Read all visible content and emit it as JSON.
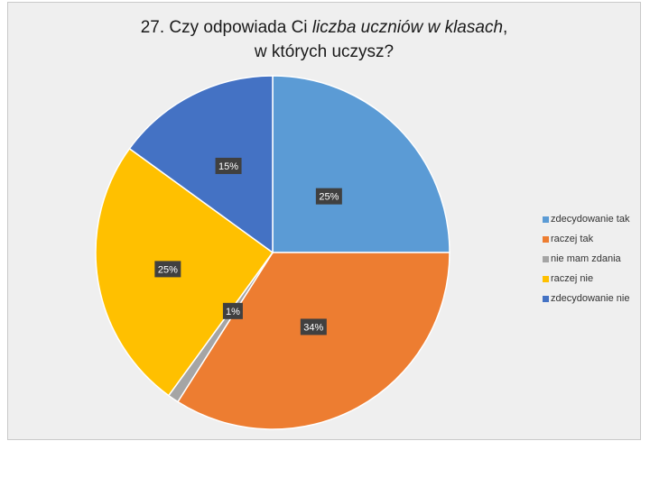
{
  "chart_data": {
    "type": "pie",
    "title": {
      "prefix": "27. Czy odpowiada Ci ",
      "italic": "liczba uczniów w klasach",
      "line1_suffix": ",",
      "line2": "w których uczysz?"
    },
    "categories": [
      "zdecydowanie tak",
      "raczej tak",
      "nie mam zdania",
      "raczej nie",
      "zdecydowanie nie"
    ],
    "values": [
      25,
      34,
      1,
      25,
      15
    ],
    "data_labels": [
      "25%",
      "34%",
      "1%",
      "25%",
      "15%"
    ],
    "colors": [
      "#5B9BD5",
      "#ED7D31",
      "#A5A5A5",
      "#FFC000",
      "#4472C4"
    ],
    "legend_position": "right"
  }
}
